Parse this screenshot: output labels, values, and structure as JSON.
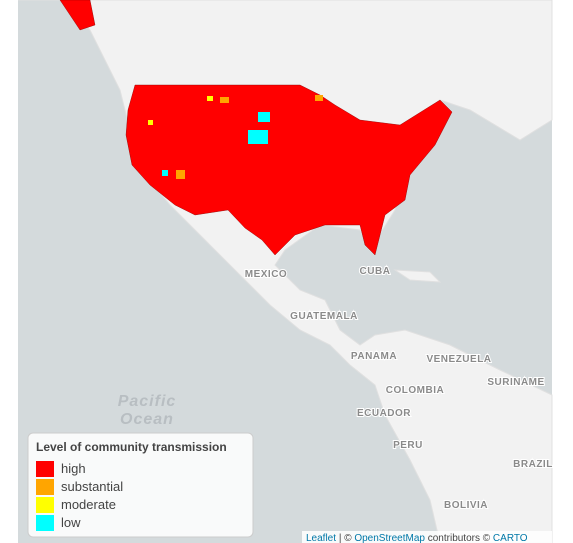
{
  "map": {
    "place_labels": [
      "MEXICO",
      "CUBA",
      "GUATEMALA",
      "PANAMA",
      "VENEZUELA",
      "COLOMBIA",
      "SURINAME",
      "ECUADOR",
      "PERU",
      "BRAZIL",
      "BOLIVIA"
    ],
    "ocean_label": [
      "Pacific",
      "Ocean"
    ]
  },
  "legend": {
    "title": "Level of community transmission",
    "items": [
      {
        "label": "high",
        "color": "#ff0000"
      },
      {
        "label": "substantial",
        "color": "#ffa500"
      },
      {
        "label": "moderate",
        "color": "#ffff00"
      },
      {
        "label": "low",
        "color": "#00ffff"
      }
    ]
  },
  "attribution": {
    "leaflet": "Leaflet",
    "sep": "| ©",
    "osm": "OpenStreetMap",
    "contrib": "contributors ©",
    "carto": "CARTO"
  }
}
